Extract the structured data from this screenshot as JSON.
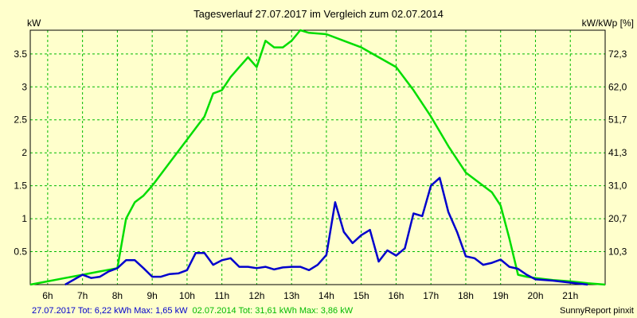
{
  "chart_data": {
    "type": "line",
    "title": "Tagesverlauf 27.07.2017 im Vergleich zum 02.07.2014",
    "ylabel_left": "kW",
    "ylabel_right": "kW/kWp [%]",
    "xlim": [
      5.5,
      22.0
    ],
    "ylim": [
      0,
      3.86
    ],
    "grid": true,
    "x_ticks": [
      {
        "x": 6,
        "label": "6h"
      },
      {
        "x": 7,
        "label": "7h"
      },
      {
        "x": 8,
        "label": "8h"
      },
      {
        "x": 9,
        "label": "9h"
      },
      {
        "x": 10,
        "label": "10h"
      },
      {
        "x": 11,
        "label": "11h"
      },
      {
        "x": 12,
        "label": "12h"
      },
      {
        "x": 13,
        "label": "13h"
      },
      {
        "x": 14,
        "label": "14h"
      },
      {
        "x": 15,
        "label": "15h"
      },
      {
        "x": 16,
        "label": "16h"
      },
      {
        "x": 17,
        "label": "17h"
      },
      {
        "x": 18,
        "label": "18h"
      },
      {
        "x": 19,
        "label": "19h"
      },
      {
        "x": 20,
        "label": "20h"
      },
      {
        "x": 21,
        "label": "21h"
      }
    ],
    "y_ticks_left": [
      {
        "y": 0.5,
        "label": "0.5"
      },
      {
        "y": 1,
        "label": "1"
      },
      {
        "y": 1.5,
        "label": "1.5"
      },
      {
        "y": 2,
        "label": "2"
      },
      {
        "y": 2.5,
        "label": "2.5"
      },
      {
        "y": 3,
        "label": "3"
      },
      {
        "y": 3.5,
        "label": "3.5"
      }
    ],
    "y_ticks_right": [
      {
        "y": 0.5,
        "label": "10,3"
      },
      {
        "y": 1,
        "label": "20,7"
      },
      {
        "y": 1.5,
        "label": "31,0"
      },
      {
        "y": 2,
        "label": "41,3"
      },
      {
        "y": 2.5,
        "label": "51,7"
      },
      {
        "y": 3,
        "label": "62,0"
      },
      {
        "y": 3.5,
        "label": "72,3"
      }
    ],
    "series": [
      {
        "color": "#00DD00",
        "x": [
          5.5,
          6.0,
          6.5,
          7.0,
          7.5,
          8.0,
          8.25,
          8.5,
          8.75,
          9.0,
          9.5,
          10.0,
          10.5,
          10.75,
          11.0,
          11.25,
          11.5,
          11.75,
          12.0,
          12.25,
          12.5,
          12.75,
          13.0,
          13.25,
          13.5,
          14.0,
          14.5,
          15.0,
          15.5,
          16.0,
          16.5,
          17.0,
          17.5,
          18.0,
          18.5,
          18.75,
          19.0,
          19.25,
          19.5,
          19.75,
          20.0,
          20.5,
          21.0,
          21.5,
          22.0
        ],
        "values": [
          0.0,
          0.05,
          0.1,
          0.15,
          0.2,
          0.25,
          1.0,
          1.25,
          1.35,
          1.5,
          1.85,
          2.2,
          2.55,
          2.9,
          2.95,
          3.15,
          3.3,
          3.45,
          3.3,
          3.7,
          3.6,
          3.6,
          3.7,
          3.86,
          3.82,
          3.8,
          3.7,
          3.6,
          3.45,
          3.3,
          2.95,
          2.55,
          2.1,
          1.7,
          1.5,
          1.4,
          1.2,
          0.7,
          0.15,
          0.12,
          0.1,
          0.07,
          0.05,
          0.02,
          0.0
        ]
      },
      {
        "color": "#0000CC",
        "x": [
          6.5,
          7.0,
          7.25,
          7.5,
          7.75,
          8.0,
          8.25,
          8.5,
          8.75,
          9.0,
          9.25,
          9.5,
          9.75,
          10.0,
          10.25,
          10.5,
          10.75,
          11.0,
          11.25,
          11.5,
          11.75,
          12.0,
          12.25,
          12.5,
          12.75,
          13.0,
          13.25,
          13.5,
          13.75,
          14.0,
          14.25,
          14.5,
          14.75,
          15.0,
          15.25,
          15.5,
          15.75,
          16.0,
          16.25,
          16.5,
          16.75,
          17.0,
          17.25,
          17.5,
          17.75,
          18.0,
          18.25,
          18.5,
          18.75,
          19.0,
          19.25,
          19.5,
          19.75,
          20.0,
          20.5,
          21.0,
          21.5
        ],
        "values": [
          0.0,
          0.15,
          0.1,
          0.12,
          0.2,
          0.25,
          0.37,
          0.37,
          0.25,
          0.12,
          0.12,
          0.16,
          0.17,
          0.22,
          0.48,
          0.48,
          0.3,
          0.37,
          0.4,
          0.27,
          0.27,
          0.25,
          0.27,
          0.23,
          0.26,
          0.27,
          0.27,
          0.22,
          0.3,
          0.45,
          1.25,
          0.8,
          0.63,
          0.75,
          0.83,
          0.35,
          0.52,
          0.44,
          0.55,
          1.08,
          1.04,
          1.5,
          1.62,
          1.1,
          0.8,
          0.43,
          0.4,
          0.3,
          0.33,
          0.38,
          0.27,
          0.24,
          0.15,
          0.08,
          0.06,
          0.03,
          0.0
        ]
      }
    ],
    "footer": {
      "blue_text": "27.07.2017 Tot: 6,22 kWh Max: 1,65 kW",
      "green_text": "02.07.2014 Tot: 31,61 kWh Max: 3,86 kW",
      "credit": "SunnyReport pinxit"
    }
  }
}
